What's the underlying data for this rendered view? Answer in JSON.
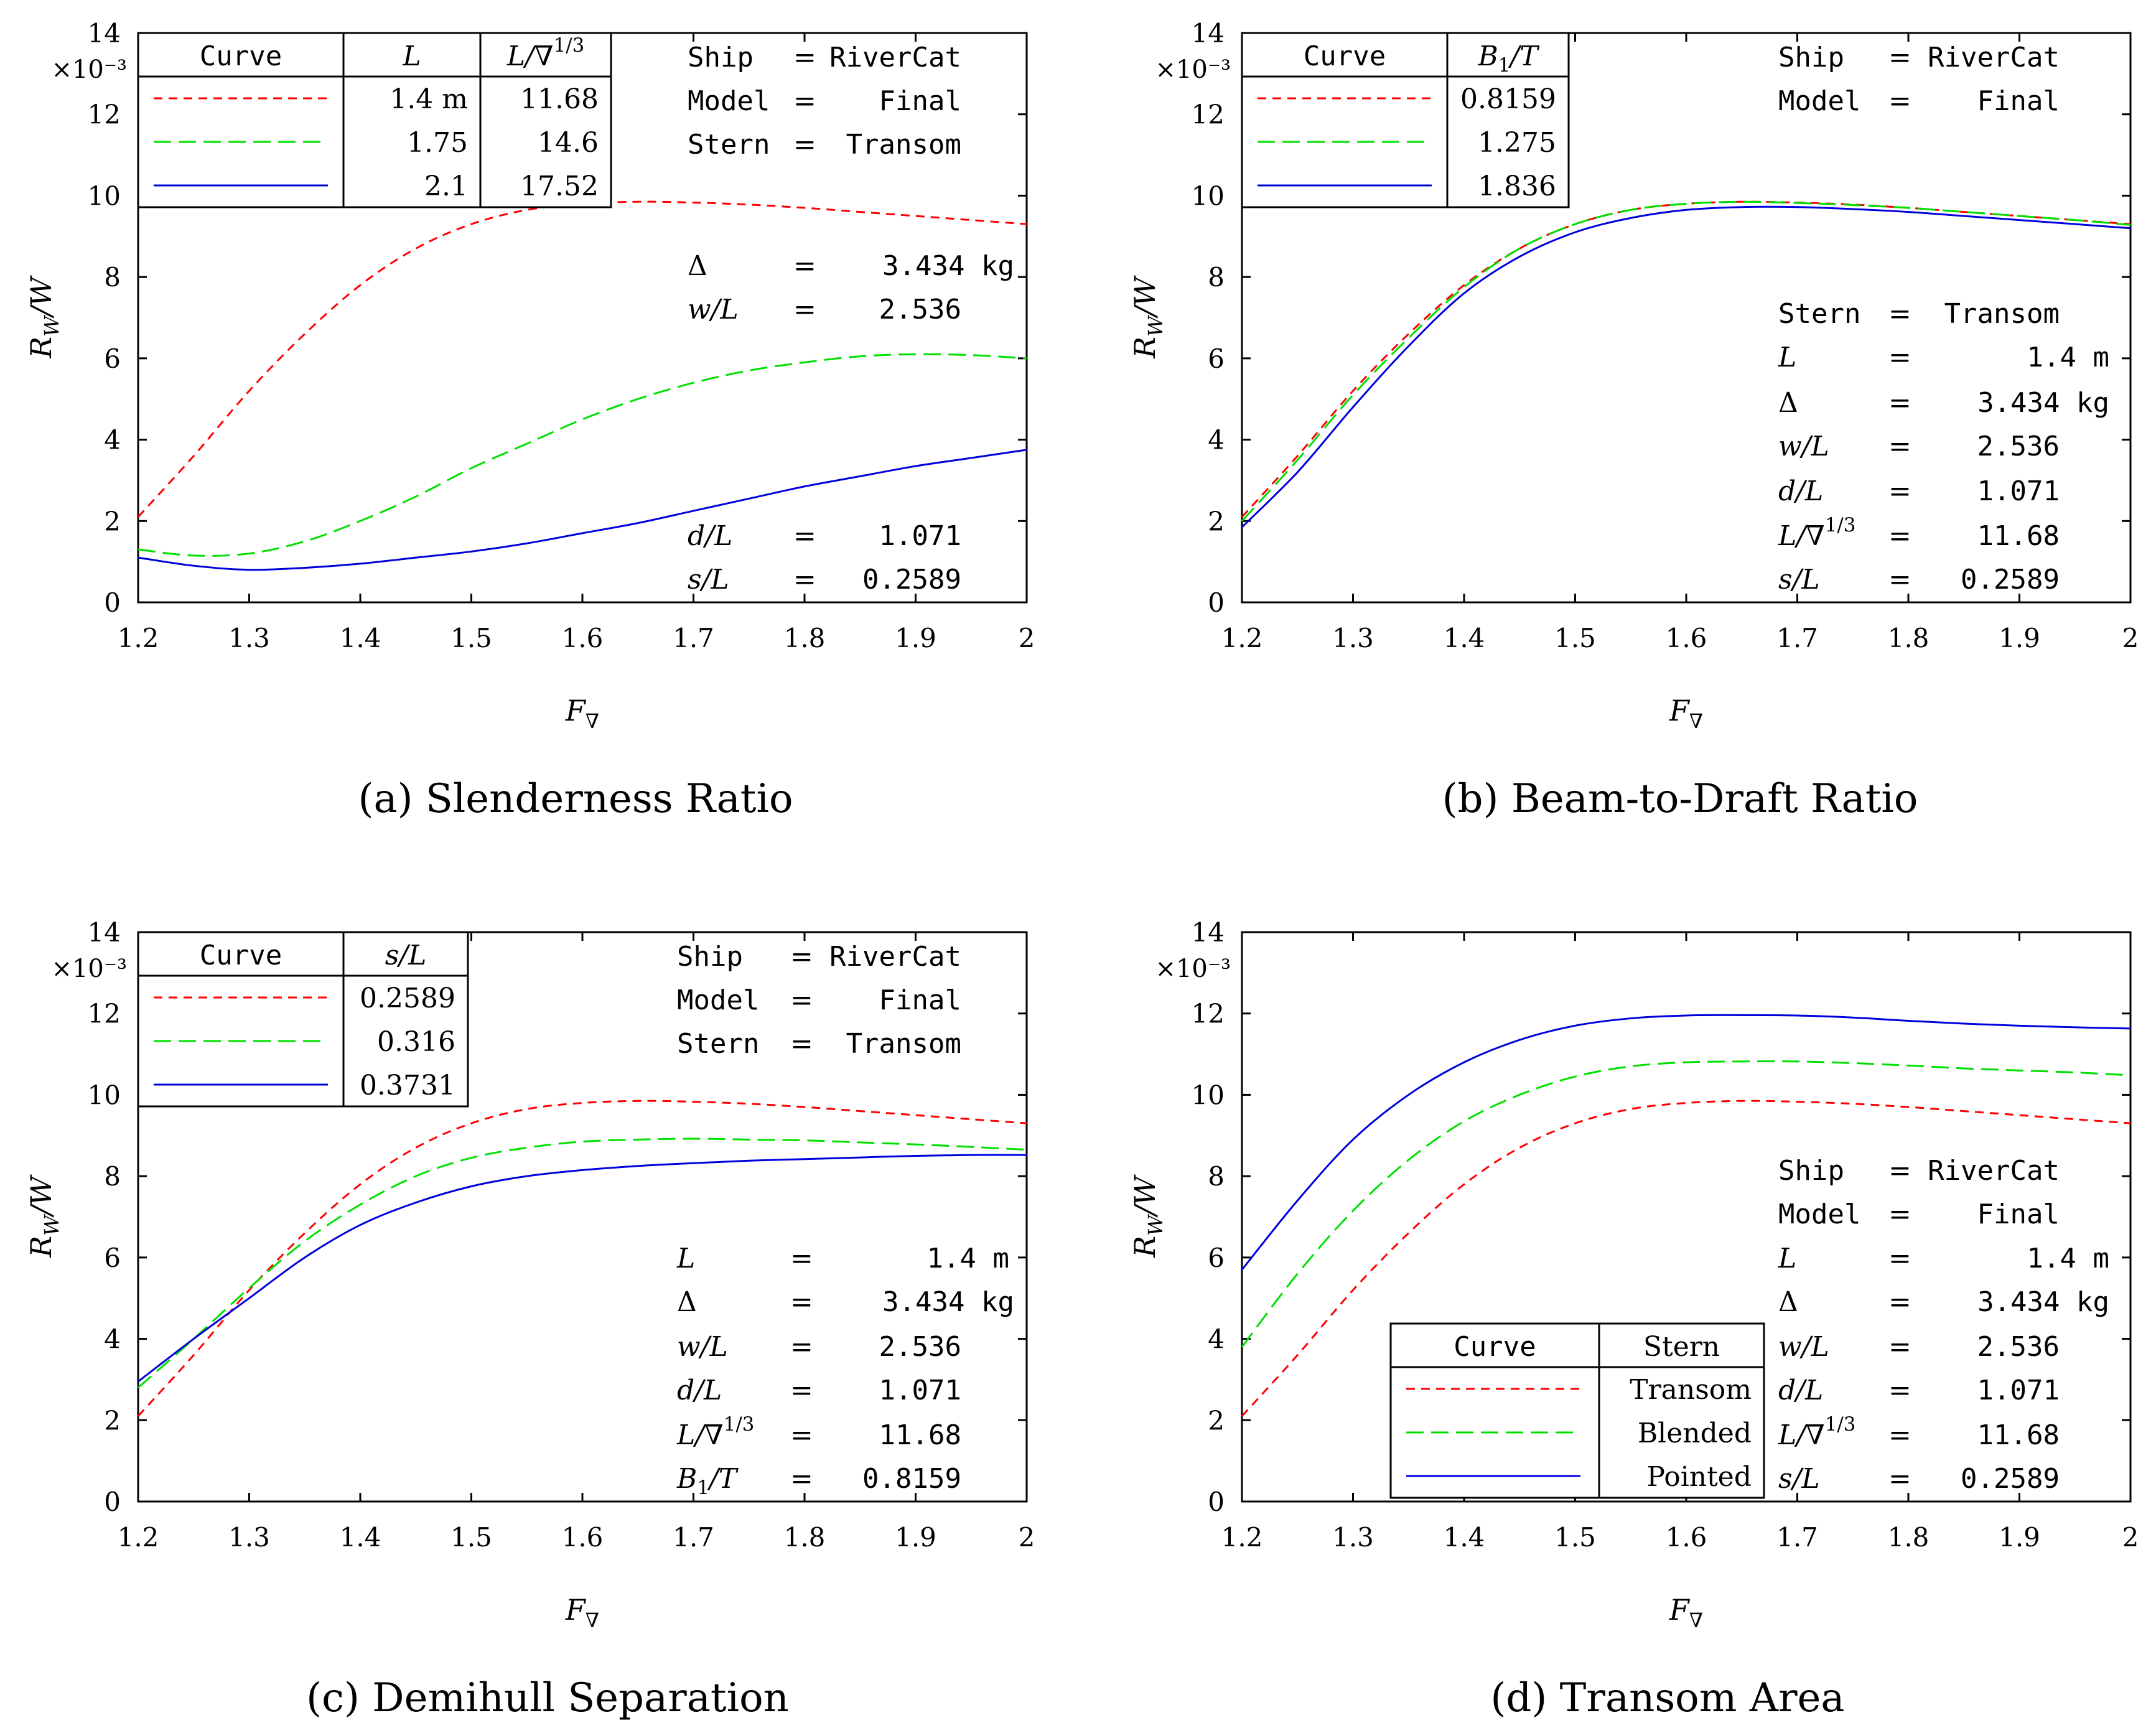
{
  "figure": {
    "x_axis_label": "F∇",
    "y_axis_label": "RW/W",
    "y_scale_label": "×10⁻³"
  },
  "chart_data": [
    {
      "type": "line",
      "caption": "(a) Slenderness Ratio",
      "xlabel": "F∇",
      "ylabel": "RW/W",
      "y_multiplier": "×10⁻³",
      "xlim": [
        1.2,
        2.0
      ],
      "ylim": [
        0,
        14
      ],
      "xticks": [
        "1.2",
        "1.3",
        "1.4",
        "1.5",
        "1.6",
        "1.7",
        "1.8",
        "1.9",
        "2"
      ],
      "yticks": [
        "0",
        "2",
        "4",
        "6",
        "8",
        "10",
        "12",
        "14"
      ],
      "x": [
        1.2,
        1.25,
        1.3,
        1.35,
        1.4,
        1.45,
        1.5,
        1.55,
        1.6,
        1.65,
        1.7,
        1.75,
        1.8,
        1.85,
        1.9,
        1.95,
        2.0
      ],
      "series": [
        {
          "name": "1.4 m",
          "color": "#ff0000",
          "dash": "dash",
          "values": [
            2.1,
            3.6,
            5.2,
            6.6,
            7.8,
            8.7,
            9.3,
            9.65,
            9.8,
            9.85,
            9.83,
            9.78,
            9.7,
            9.6,
            9.5,
            9.4,
            9.3
          ]
        },
        {
          "name": "1.75",
          "color": "#00e000",
          "dash": "longdash",
          "values": [
            1.3,
            1.15,
            1.2,
            1.5,
            2.0,
            2.6,
            3.3,
            3.9,
            4.5,
            5.0,
            5.4,
            5.7,
            5.9,
            6.05,
            6.1,
            6.08,
            6.0
          ]
        },
        {
          "name": "2.1",
          "color": "#0000dd",
          "dash": "solid",
          "values": [
            1.1,
            0.9,
            0.8,
            0.85,
            0.95,
            1.1,
            1.25,
            1.45,
            1.7,
            1.95,
            2.25,
            2.55,
            2.85,
            3.1,
            3.35,
            3.55,
            3.75
          ]
        }
      ],
      "legend": {
        "headers": [
          "Curve",
          "L",
          "L/∇1/3"
        ],
        "rows": [
          [
            "1.4 m",
            "11.68"
          ],
          [
            "1.75",
            "14.6"
          ],
          [
            "2.1",
            "17.52"
          ]
        ]
      },
      "annotations": [
        {
          "label": "Ship",
          "eq": "=",
          "value": "RiverCat"
        },
        {
          "label": "Model",
          "eq": "=",
          "value": "Final"
        },
        {
          "label": "Stern",
          "eq": "=",
          "value": "Transom"
        },
        {
          "label": "Δ",
          "eq": "=",
          "value": "3.434 kg"
        },
        {
          "label": "w/L",
          "eq": "=",
          "value": "2.536"
        },
        {
          "label": "d/L",
          "eq": "=",
          "value": "1.071"
        },
        {
          "label": "s/L",
          "eq": "=",
          "value": "0.2589"
        }
      ]
    },
    {
      "type": "line",
      "caption": "(b) Beam-to-Draft Ratio",
      "xlabel": "F∇",
      "ylabel": "RW/W",
      "y_multiplier": "×10⁻³",
      "xlim": [
        1.2,
        2.0
      ],
      "ylim": [
        0,
        14
      ],
      "xticks": [
        "1.2",
        "1.3",
        "1.4",
        "1.5",
        "1.6",
        "1.7",
        "1.8",
        "1.9",
        "2"
      ],
      "yticks": [
        "0",
        "2",
        "4",
        "6",
        "8",
        "10",
        "12",
        "14"
      ],
      "x": [
        1.2,
        1.25,
        1.3,
        1.35,
        1.4,
        1.45,
        1.5,
        1.55,
        1.6,
        1.65,
        1.7,
        1.75,
        1.8,
        1.85,
        1.9,
        1.95,
        2.0
      ],
      "series": [
        {
          "name": "0.8159",
          "color": "#ff0000",
          "dash": "dash",
          "values": [
            2.1,
            3.6,
            5.2,
            6.6,
            7.8,
            8.7,
            9.3,
            9.65,
            9.8,
            9.85,
            9.83,
            9.78,
            9.7,
            9.6,
            9.5,
            9.4,
            9.3
          ]
        },
        {
          "name": "1.275",
          "color": "#00e000",
          "dash": "longdash",
          "values": [
            2.0,
            3.5,
            5.1,
            6.5,
            7.75,
            8.7,
            9.3,
            9.65,
            9.8,
            9.85,
            9.82,
            9.77,
            9.7,
            9.6,
            9.5,
            9.4,
            9.28
          ]
        },
        {
          "name": "1.836",
          "color": "#0000dd",
          "dash": "solid",
          "values": [
            1.85,
            3.2,
            4.8,
            6.3,
            7.6,
            8.5,
            9.1,
            9.45,
            9.65,
            9.72,
            9.72,
            9.67,
            9.6,
            9.5,
            9.4,
            9.3,
            9.2
          ]
        }
      ],
      "legend": {
        "headers": [
          "Curve",
          "B1/T"
        ],
        "rows": [
          [
            "0.8159"
          ],
          [
            "1.275"
          ],
          [
            "1.836"
          ]
        ]
      },
      "annotations": [
        {
          "label": "Ship",
          "eq": "=",
          "value": "RiverCat"
        },
        {
          "label": "Model",
          "eq": "=",
          "value": "Final"
        },
        {
          "label": "Stern",
          "eq": "=",
          "value": "Transom"
        },
        {
          "label": "L",
          "eq": "=",
          "value": "1.4 m"
        },
        {
          "label": "Δ",
          "eq": "=",
          "value": "3.434 kg"
        },
        {
          "label": "w/L",
          "eq": "=",
          "value": "2.536"
        },
        {
          "label": "d/L",
          "eq": "=",
          "value": "1.071"
        },
        {
          "label": "L/∇1/3",
          "eq": "=",
          "value": "11.68"
        },
        {
          "label": "s/L",
          "eq": "=",
          "value": "0.2589"
        }
      ]
    },
    {
      "type": "line",
      "caption": "(c) Demihull Separation",
      "xlabel": "F∇",
      "ylabel": "RW/W",
      "y_multiplier": "×10⁻³",
      "xlim": [
        1.2,
        2.0
      ],
      "ylim": [
        0,
        14
      ],
      "xticks": [
        "1.2",
        "1.3",
        "1.4",
        "1.5",
        "1.6",
        "1.7",
        "1.8",
        "1.9",
        "2"
      ],
      "yticks": [
        "0",
        "2",
        "4",
        "6",
        "8",
        "10",
        "12",
        "14"
      ],
      "x": [
        1.2,
        1.25,
        1.3,
        1.35,
        1.4,
        1.45,
        1.5,
        1.55,
        1.6,
        1.65,
        1.7,
        1.75,
        1.8,
        1.85,
        1.9,
        1.95,
        2.0
      ],
      "series": [
        {
          "name": "0.2589",
          "color": "#ff0000",
          "dash": "dash",
          "values": [
            2.1,
            3.6,
            5.2,
            6.6,
            7.8,
            8.7,
            9.3,
            9.65,
            9.8,
            9.85,
            9.83,
            9.78,
            9.7,
            9.6,
            9.5,
            9.4,
            9.3
          ]
        },
        {
          "name": "0.316",
          "color": "#00e000",
          "dash": "longdash",
          "values": [
            2.8,
            4.0,
            5.25,
            6.4,
            7.3,
            8.0,
            8.45,
            8.7,
            8.85,
            8.9,
            8.92,
            8.9,
            8.88,
            8.83,
            8.78,
            8.72,
            8.65
          ]
        },
        {
          "name": "0.3731",
          "color": "#0000dd",
          "dash": "solid",
          "values": [
            2.95,
            4.0,
            5.0,
            6.0,
            6.8,
            7.35,
            7.75,
            8.0,
            8.15,
            8.25,
            8.32,
            8.38,
            8.42,
            8.46,
            8.5,
            8.52,
            8.52
          ]
        }
      ],
      "legend": {
        "headers": [
          "Curve",
          "s/L"
        ],
        "rows": [
          [
            "0.2589"
          ],
          [
            "0.316"
          ],
          [
            "0.3731"
          ]
        ]
      },
      "annotations": [
        {
          "label": "Ship",
          "eq": "=",
          "value": "RiverCat"
        },
        {
          "label": "Model",
          "eq": "=",
          "value": "Final"
        },
        {
          "label": "Stern",
          "eq": "=",
          "value": "Transom"
        },
        {
          "label": "L",
          "eq": "=",
          "value": "1.4 m"
        },
        {
          "label": "Δ",
          "eq": "=",
          "value": "3.434 kg"
        },
        {
          "label": "w/L",
          "eq": "=",
          "value": "2.536"
        },
        {
          "label": "d/L",
          "eq": "=",
          "value": "1.071"
        },
        {
          "label": "L/∇1/3",
          "eq": "=",
          "value": "11.68"
        },
        {
          "label": "B1/T",
          "eq": "=",
          "value": "0.8159"
        }
      ]
    },
    {
      "type": "line",
      "caption": "(d) Transom Area",
      "xlabel": "F∇",
      "ylabel": "RW/W",
      "y_multiplier": "×10⁻³",
      "xlim": [
        1.2,
        2.0
      ],
      "ylim": [
        0,
        14
      ],
      "xticks": [
        "1.2",
        "1.3",
        "1.4",
        "1.5",
        "1.6",
        "1.7",
        "1.8",
        "1.9",
        "2"
      ],
      "yticks": [
        "0",
        "2",
        "4",
        "6",
        "8",
        "10",
        "12",
        "14"
      ],
      "x": [
        1.2,
        1.25,
        1.3,
        1.35,
        1.4,
        1.45,
        1.5,
        1.55,
        1.6,
        1.65,
        1.7,
        1.75,
        1.8,
        1.85,
        1.9,
        1.95,
        2.0
      ],
      "series": [
        {
          "name": "Transom",
          "color": "#ff0000",
          "dash": "dash",
          "values": [
            2.1,
            3.6,
            5.2,
            6.6,
            7.8,
            8.7,
            9.3,
            9.65,
            9.8,
            9.85,
            9.83,
            9.78,
            9.7,
            9.6,
            9.5,
            9.4,
            9.3
          ]
        },
        {
          "name": "Blended",
          "color": "#00e000",
          "dash": "longdash",
          "values": [
            3.8,
            5.6,
            7.15,
            8.4,
            9.35,
            10.0,
            10.45,
            10.7,
            10.8,
            10.82,
            10.82,
            10.78,
            10.72,
            10.65,
            10.6,
            10.55,
            10.48
          ]
        },
        {
          "name": "Pointed",
          "color": "#0000dd",
          "dash": "solid",
          "values": [
            5.7,
            7.4,
            8.9,
            10.0,
            10.8,
            11.35,
            11.7,
            11.88,
            11.95,
            11.96,
            11.95,
            11.9,
            11.82,
            11.75,
            11.7,
            11.66,
            11.63
          ]
        }
      ],
      "legend": {
        "headers": [
          "Curve",
          "Stern"
        ],
        "rows": [
          [
            "Transom"
          ],
          [
            "Blended"
          ],
          [
            "Pointed"
          ]
        ]
      },
      "annotations": [
        {
          "label": "Ship",
          "eq": "=",
          "value": "RiverCat"
        },
        {
          "label": "Model",
          "eq": "=",
          "value": "Final"
        },
        {
          "label": "L",
          "eq": "=",
          "value": "1.4 m"
        },
        {
          "label": "Δ",
          "eq": "=",
          "value": "3.434 kg"
        },
        {
          "label": "w/L",
          "eq": "=",
          "value": "2.536"
        },
        {
          "label": "d/L",
          "eq": "=",
          "value": "1.071"
        },
        {
          "label": "L/∇1/3",
          "eq": "=",
          "value": "11.68"
        },
        {
          "label": "s/L",
          "eq": "=",
          "value": "0.2589"
        }
      ]
    }
  ]
}
